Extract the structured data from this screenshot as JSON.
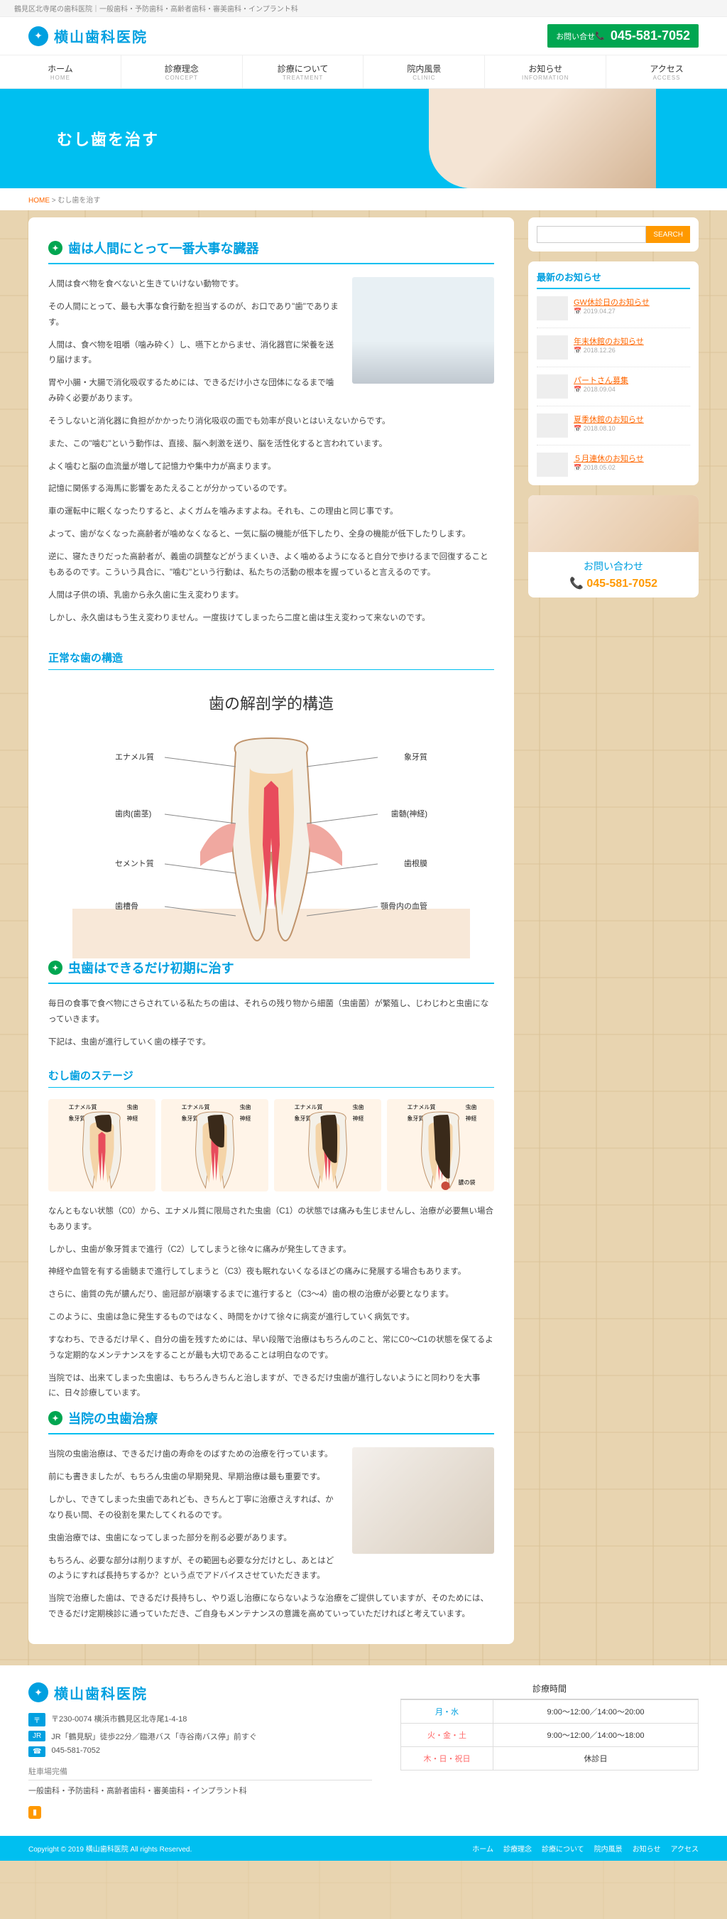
{
  "top_bar": "鶴見区北寺尾の歯科医院｜一般歯科・予防歯科・高齢者歯科・審美歯科・インプラント科",
  "site_name": "横山歯科医院",
  "contact_label": "お問い合せ",
  "phone": "045-581-7052",
  "nav": [
    {
      "jp": "ホーム",
      "en": "HOME"
    },
    {
      "jp": "診療理念",
      "en": "CONCEPT"
    },
    {
      "jp": "診療について",
      "en": "TREATMENT"
    },
    {
      "jp": "院内風景",
      "en": "CLINIC"
    },
    {
      "jp": "お知らせ",
      "en": "INFORMATION"
    },
    {
      "jp": "アクセス",
      "en": "ACCESS"
    }
  ],
  "hero_title": "むし歯を治す",
  "breadcrumb_home": "HOME",
  "breadcrumb_sep": ">",
  "breadcrumb_current": "むし歯を治す",
  "search_placeholder": "",
  "search_btn": "SEARCH",
  "news_title": "最新のお知らせ",
  "news": [
    {
      "title": "GW休診日のお知らせ",
      "date": "2019.04.27"
    },
    {
      "title": "年末休館のお知らせ",
      "date": "2018.12.26"
    },
    {
      "title": "パートさん募集",
      "date": "2018.09.04"
    },
    {
      "title": "夏季休館のお知らせ",
      "date": "2018.08.10"
    },
    {
      "title": "５月連休のお知らせ",
      "date": "2018.05.02"
    }
  ],
  "contact_box_title": "お問い合わせ",
  "contact_box_tel": "045-581-7052",
  "section1_title": "歯は人間にとって一番大事な臓器",
  "section1_p": [
    "人間は食べ物を食べないと生きていけない動物です。",
    "その人間にとって、最も大事な食行動を担当するのが、お口であり\"歯\"であります。",
    "人間は、食べ物を咀嚼（噛み砕く）し、嚥下とからませ、消化器官に栄養を送り届けます。",
    "胃や小腸・大腸で消化吸収するためには、できるだけ小さな団体になるまで噛み砕く必要があります。",
    "そうしないと消化器に負担がかかったり消化吸収の面でも効率が良いとはいえないからです。",
    "また、この\"噛む\"という動作は、直接、脳へ刺激を送り、脳を活性化すると言われています。",
    "よく噛むと脳の血流量が増して記憶力や集中力が高まります。",
    "記憶に関係する海馬に影響をあたえることが分かっているのです。",
    "車の運転中に眠くなったりすると、よくガムを噛みますよね。それも、この理由と同じ事です。",
    "よって、歯がなくなった高齢者が噛めなくなると、一気に脳の機能が低下したり、全身の機能が低下したりします。",
    "逆に、寝たきりだった高齢者が、義歯の調整などがうまくいき、よく噛めるようになると自分で歩けるまで回復することもあるのです。こういう具合に、\"噛む\"という行動は、私たちの活動の根本を握っていると言えるのです。",
    "人間は子供の頃、乳歯から永久歯に生え変わります。",
    "しかし、永久歯はもう生え変わりません。一度抜けてしまったら二度と歯は生え変わって来ないのです。"
  ],
  "section1_sub1": "正常な歯の構造",
  "diagram_title": "歯の解剖学的構造",
  "diagram_labels_left": [
    "エナメル質",
    "歯肉(歯茎)",
    "セメント質",
    "歯槽骨"
  ],
  "diagram_labels_right": [
    "象牙質",
    "歯髄(神経)",
    "歯根膜",
    "顎骨内の血管"
  ],
  "section2_title": "虫歯はできるだけ初期に治す",
  "section2_p": [
    "毎日の食事で食べ物にさらされている私たちの歯は、それらの残り物から細菌（虫歯菌）が繁殖し、じわじわと虫歯になっていきます。",
    "下記は、虫歯が進行していく歯の様子です。"
  ],
  "section2_sub1": "むし歯のステージ",
  "stage_labels": {
    "enamel": "エナメル質",
    "dentin": "象牙質",
    "pulp": "神経",
    "cavity": "虫歯",
    "abscess": "膿の袋"
  },
  "section2_p2": [
    "なんともない状態（C0）から、エナメル質に限局された虫歯（C1）の状態では痛みも生じませんし、治療が必要無い場合もあります。",
    "しかし、虫歯が象牙質まで進行（C2）してしまうと徐々に痛みが発生してきます。",
    "神経や血管を有する歯髄まで進行してしまうと（C3）夜も眠れないくなるほどの痛みに発展する場合もあります。",
    "さらに、歯質の先が膿んだり、歯冠部が崩壊するまでに進行すると（C3〜4）歯の根の治療が必要となります。",
    "このように、虫歯は急に発生するものではなく、時間をかけて徐々に病変が進行していく病気です。",
    "すなわち、できるだけ早く、自分の歯を残すためには、早い段階で治療はもちろんのこと、常にC0〜C1の状態を保てるような定期的なメンテナンスをすることが最も大切であることは明白なのです。",
    "当院では、出来てしまった虫歯は、もちろんきちんと治しますが、できるだけ虫歯が進行しないようにと同わりを大事に、日々診療しています。"
  ],
  "section3_title": "当院の虫歯治療",
  "section3_p": [
    "当院の虫歯治療は、できるだけ歯の寿命をのばすための治療を行っています。",
    "前にも書きましたが、もちろん虫歯の早期発見、早期治療は最も重要です。",
    "しかし、できてしまった虫歯であれども、きちんと丁寧に治療さえすれば、かなり長い間、その役割を果たしてくれるのです。",
    "虫歯治療では、虫歯になってしまった部分を削る必要があります。",
    "もちろん、必要な部分は削りますが、その範囲も必要な分だけとし、あとはどのようにすれば長持ちするか？という点でアドバイスさせていただきます。",
    "当院で治療した歯は、できるだけ長持ちし、やり返し治療にならないような治療をご提供していますが、そのためには、できるだけ定期検診に通っていただき、ご自身もメンテナンスの意識を高めていっていただければと考えています。"
  ],
  "footer_addr_label": "〒",
  "footer_addr": "〒230-0074 横浜市鶴見区北寺尾1-4-18",
  "footer_train_label": "JR",
  "footer_train": "JR「鶴見駅」徒歩22分／臨港バス「寺谷南バス停」前すぐ",
  "footer_tel_label": "☎",
  "footer_tel": "045-581-7052",
  "footer_parking_title": "駐車場完備",
  "footer_depts": "一般歯科・予防歯科・高齢者歯科・審美歯科・インプラント科",
  "hours_title": "診療時間",
  "hours": [
    {
      "day": "月・水",
      "time": "9:00〜12:00／14:00〜20:00",
      "cls": ""
    },
    {
      "day": "火・金・土",
      "time": "9:00〜12:00／14:00〜18:00",
      "cls": "r"
    },
    {
      "day": "木・日・祝日",
      "time": "休診日",
      "cls": "r"
    }
  ],
  "copyright": "Copyright © 2019 横山歯科医院 All rights Reserved.",
  "foot_nav": [
    "ホーム",
    "診療理念",
    "診療について",
    "院内風景",
    "お知らせ",
    "アクセス"
  ],
  "colors": {
    "brand": "#00a0e0",
    "hero": "#00bff0",
    "accent": "#f90",
    "green": "#00a651",
    "link": "#f60"
  }
}
